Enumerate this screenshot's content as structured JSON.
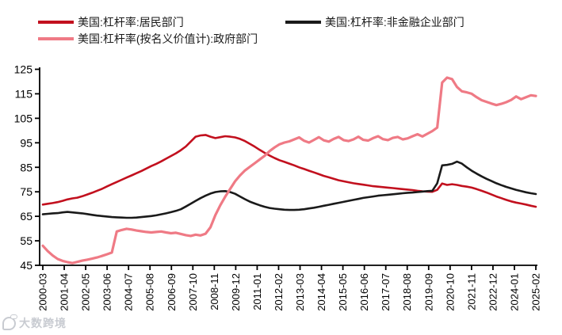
{
  "legend": {
    "items": [
      {
        "label": "美国:杠杆率:居民部门",
        "color": "#c2101e"
      },
      {
        "label": "美国:杠杆率:非金融企业部门",
        "color": "#1a1a1a"
      },
      {
        "label": "美国:杠杆率(按名义价值计):政府部门",
        "color": "#ef7a85"
      }
    ]
  },
  "watermark": {
    "text": "大数跨境"
  },
  "chart_data": {
    "type": "line",
    "title": "",
    "xlabel": "",
    "ylabel": "",
    "grid": false,
    "legend_position": "top",
    "ylim": [
      45,
      125
    ],
    "y_ticks": [
      45,
      55,
      65,
      75,
      85,
      95,
      105,
      115,
      125
    ],
    "x_frequency": "quarterly",
    "x_range": [
      "2000-Q1",
      "2025-Q1"
    ],
    "x_tick_labels": [
      "2000-03",
      "2001-04",
      "2002-05",
      "2003-06",
      "2004-07",
      "2005-08",
      "2006-09",
      "2007-10",
      "2008-11",
      "2009-12",
      "2011-01",
      "2012-02",
      "2013-03",
      "2014-04",
      "2015-05",
      "2016-06",
      "2017-07",
      "2018-08",
      "2019-09",
      "2020-10",
      "2021-11",
      "2022-12",
      "2024-01",
      "2025-02"
    ],
    "series": [
      {
        "name": "美国:杠杆率:居民部门",
        "color": "#c2101e",
        "width": 2.6,
        "values": [
          69.8,
          70.1,
          70.4,
          70.8,
          71.3,
          71.9,
          72.3,
          72.6,
          73.2,
          73.9,
          74.6,
          75.4,
          76.2,
          77.2,
          78.1,
          79.0,
          79.9,
          80.8,
          81.7,
          82.6,
          83.5,
          84.5,
          85.5,
          86.4,
          87.4,
          88.5,
          89.6,
          90.7,
          92.0,
          93.5,
          95.5,
          97.5,
          98.0,
          98.2,
          97.5,
          96.9,
          97.3,
          97.7,
          97.5,
          97.2,
          96.6,
          95.7,
          94.6,
          93.4,
          92.1,
          90.9,
          89.8,
          88.8,
          87.9,
          87.2,
          86.5,
          85.8,
          85.0,
          84.3,
          83.6,
          82.9,
          82.2,
          81.5,
          80.9,
          80.3,
          79.7,
          79.3,
          78.9,
          78.5,
          78.2,
          77.9,
          77.6,
          77.3,
          77.1,
          76.9,
          76.7,
          76.5,
          76.3,
          76.1,
          75.9,
          75.7,
          75.4,
          75.2,
          75.1,
          75.0,
          75.8,
          78.4,
          77.8,
          78.1,
          77.8,
          77.4,
          77.1,
          76.7,
          76.1,
          75.4,
          74.7,
          73.9,
          73.1,
          72.4,
          71.7,
          71.1,
          70.6,
          70.2,
          69.8,
          69.3,
          68.9
        ]
      },
      {
        "name": "美国:杠杆率:非金融企业部门",
        "color": "#1a1a1a",
        "width": 2.6,
        "values": [
          65.8,
          66.0,
          66.2,
          66.3,
          66.6,
          66.8,
          66.6,
          66.4,
          66.2,
          65.9,
          65.6,
          65.3,
          65.1,
          64.9,
          64.7,
          64.6,
          64.5,
          64.4,
          64.4,
          64.5,
          64.7,
          64.9,
          65.1,
          65.4,
          65.8,
          66.2,
          66.7,
          67.2,
          67.9,
          69.0,
          70.1,
          71.3,
          72.4,
          73.4,
          74.3,
          74.9,
          75.2,
          75.3,
          74.9,
          74.2,
          73.1,
          72.0,
          71.0,
          70.2,
          69.5,
          68.9,
          68.4,
          68.1,
          67.9,
          67.7,
          67.6,
          67.6,
          67.7,
          67.9,
          68.2,
          68.5,
          68.9,
          69.3,
          69.7,
          70.1,
          70.5,
          70.9,
          71.3,
          71.7,
          72.1,
          72.5,
          72.8,
          73.1,
          73.4,
          73.6,
          73.8,
          74.0,
          74.2,
          74.4,
          74.6,
          74.7,
          74.9,
          75.1,
          75.3,
          75.4,
          78.5,
          85.8,
          86.0,
          86.4,
          87.3,
          86.5,
          85.0,
          83.6,
          82.4,
          81.3,
          80.3,
          79.4,
          78.5,
          77.7,
          77.0,
          76.4,
          75.8,
          75.3,
          74.8,
          74.4,
          74.1
        ]
      },
      {
        "name": "美国:杠杆率(按名义价值计):政府部门",
        "color": "#ef7a85",
        "width": 3.2,
        "values": [
          53.0,
          50.8,
          49.0,
          47.6,
          46.8,
          46.3,
          45.9,
          46.4,
          46.9,
          47.3,
          47.7,
          48.2,
          48.8,
          49.5,
          50.2,
          58.8,
          59.4,
          59.9,
          59.6,
          59.2,
          58.9,
          58.6,
          58.4,
          58.6,
          58.8,
          58.4,
          58.1,
          58.3,
          57.8,
          57.3,
          57.0,
          57.5,
          57.2,
          57.9,
          60.5,
          65.5,
          69.5,
          73.0,
          76.2,
          79.3,
          81.7,
          83.7,
          85.2,
          86.7,
          88.2,
          89.7,
          91.6,
          93.1,
          94.4,
          95.1,
          95.6,
          96.4,
          97.2,
          95.8,
          95.1,
          96.2,
          97.3,
          96.0,
          95.5,
          96.6,
          97.4,
          96.1,
          95.7,
          96.4,
          97.5,
          96.2,
          95.9,
          96.9,
          97.7,
          96.5,
          96.1,
          97.0,
          97.4,
          96.4,
          96.8,
          97.7,
          98.5,
          97.6,
          98.7,
          99.8,
          101.2,
          119.6,
          121.6,
          121.0,
          117.8,
          116.0,
          115.6,
          115.0,
          113.6,
          112.4,
          111.7,
          111.0,
          110.4,
          110.9,
          111.6,
          112.5,
          113.9,
          112.8,
          113.6,
          114.4,
          114.1
        ]
      }
    ]
  }
}
